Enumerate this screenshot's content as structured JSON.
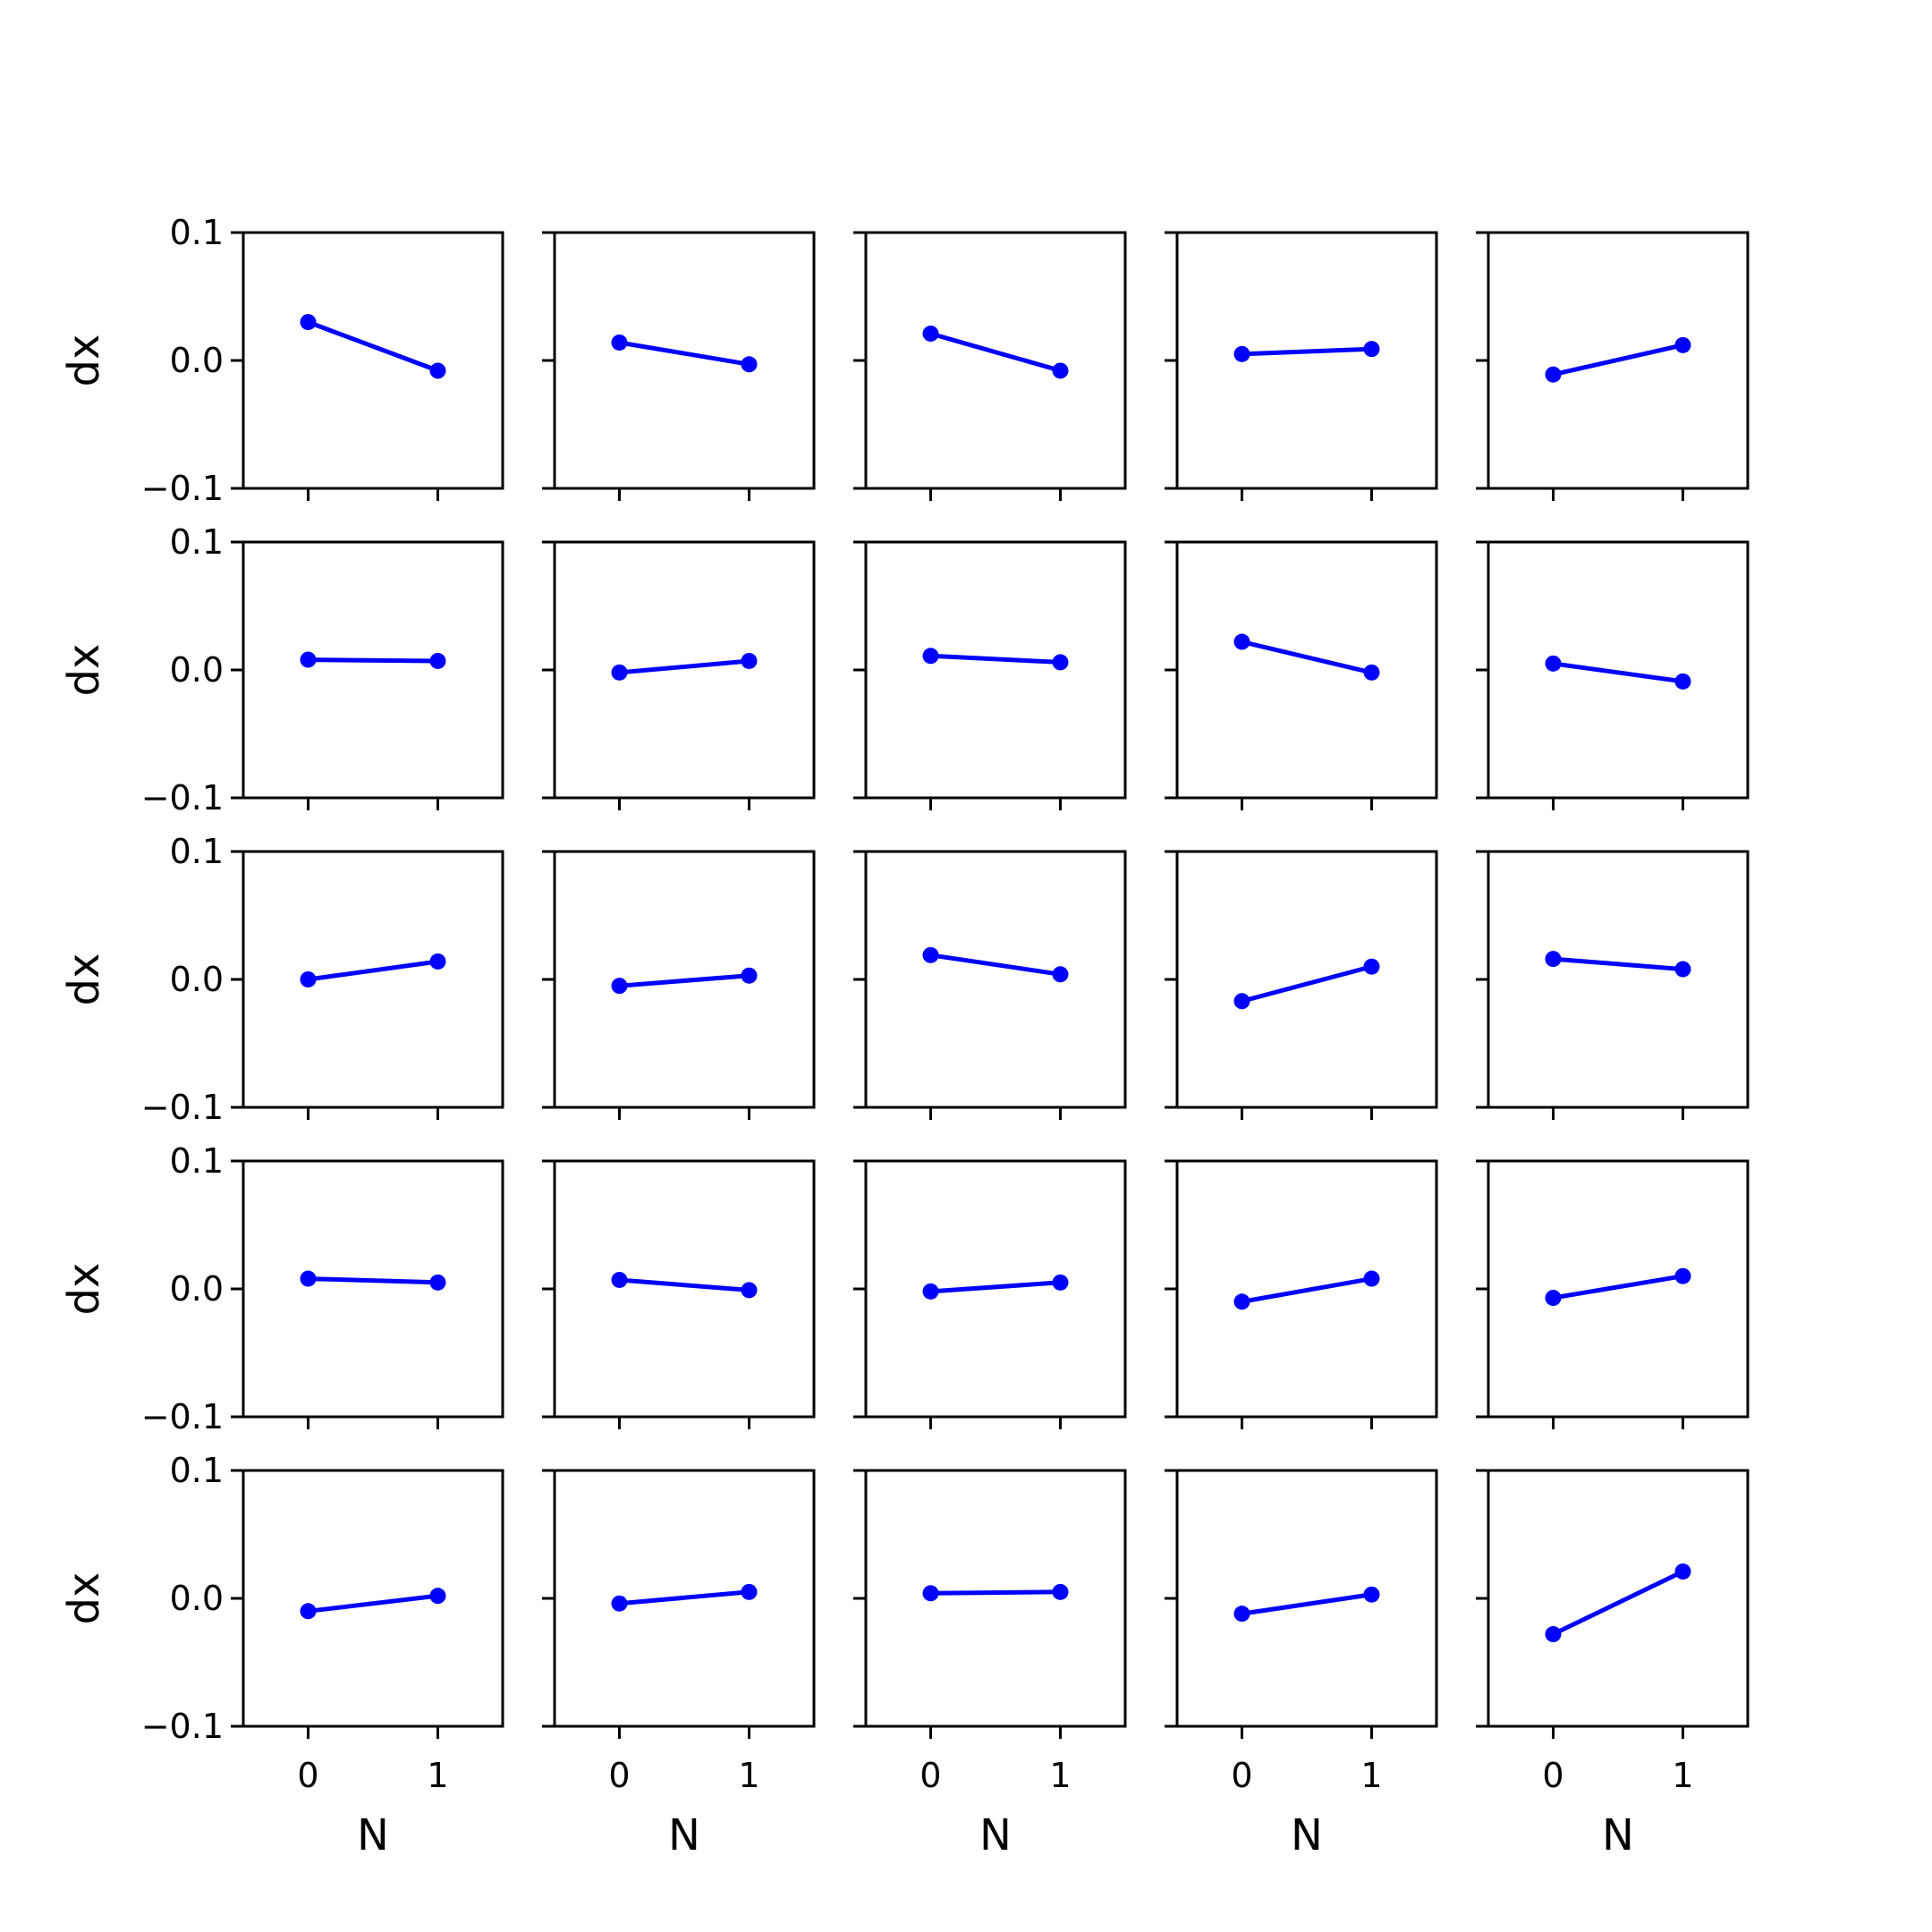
{
  "chart_data": {
    "type": "line",
    "layout": "grid",
    "grid_rows": 5,
    "grid_cols": 5,
    "xlabel": "N",
    "ylabel": "dx",
    "x": [
      0,
      1
    ],
    "xticks": [
      0,
      1
    ],
    "xtick_labels": [
      "0",
      "1"
    ],
    "xlim": [
      -0.5,
      1.5
    ],
    "ylim": [
      -0.1,
      0.1
    ],
    "yticks": [
      0.1,
      0.0,
      -0.1
    ],
    "ytick_labels": [
      "0.1",
      "0.0",
      "−0.1"
    ],
    "sharex": true,
    "sharey": true,
    "grid": false,
    "marker": "circle",
    "color": "#0000ff",
    "panels": [
      [
        0.03,
        -0.008
      ],
      [
        0.014,
        -0.003
      ],
      [
        0.021,
        -0.008
      ],
      [
        0.005,
        0.009
      ],
      [
        -0.011,
        0.012
      ],
      [
        0.008,
        0.007
      ],
      [
        -0.002,
        0.007
      ],
      [
        0.011,
        0.006
      ],
      [
        0.022,
        -0.002
      ],
      [
        0.005,
        -0.009
      ],
      [
        0.0,
        0.014
      ],
      [
        -0.005,
        0.003
      ],
      [
        0.019,
        0.004
      ],
      [
        -0.017,
        0.01
      ],
      [
        0.016,
        0.008
      ],
      [
        0.008,
        0.005
      ],
      [
        0.007,
        -0.001
      ],
      [
        -0.002,
        0.005
      ],
      [
        -0.01,
        0.008
      ],
      [
        -0.007,
        0.01
      ],
      [
        -0.01,
        0.002
      ],
      [
        -0.004,
        0.005
      ],
      [
        0.004,
        0.005
      ],
      [
        -0.012,
        0.003
      ],
      [
        -0.028,
        0.021
      ]
    ]
  }
}
